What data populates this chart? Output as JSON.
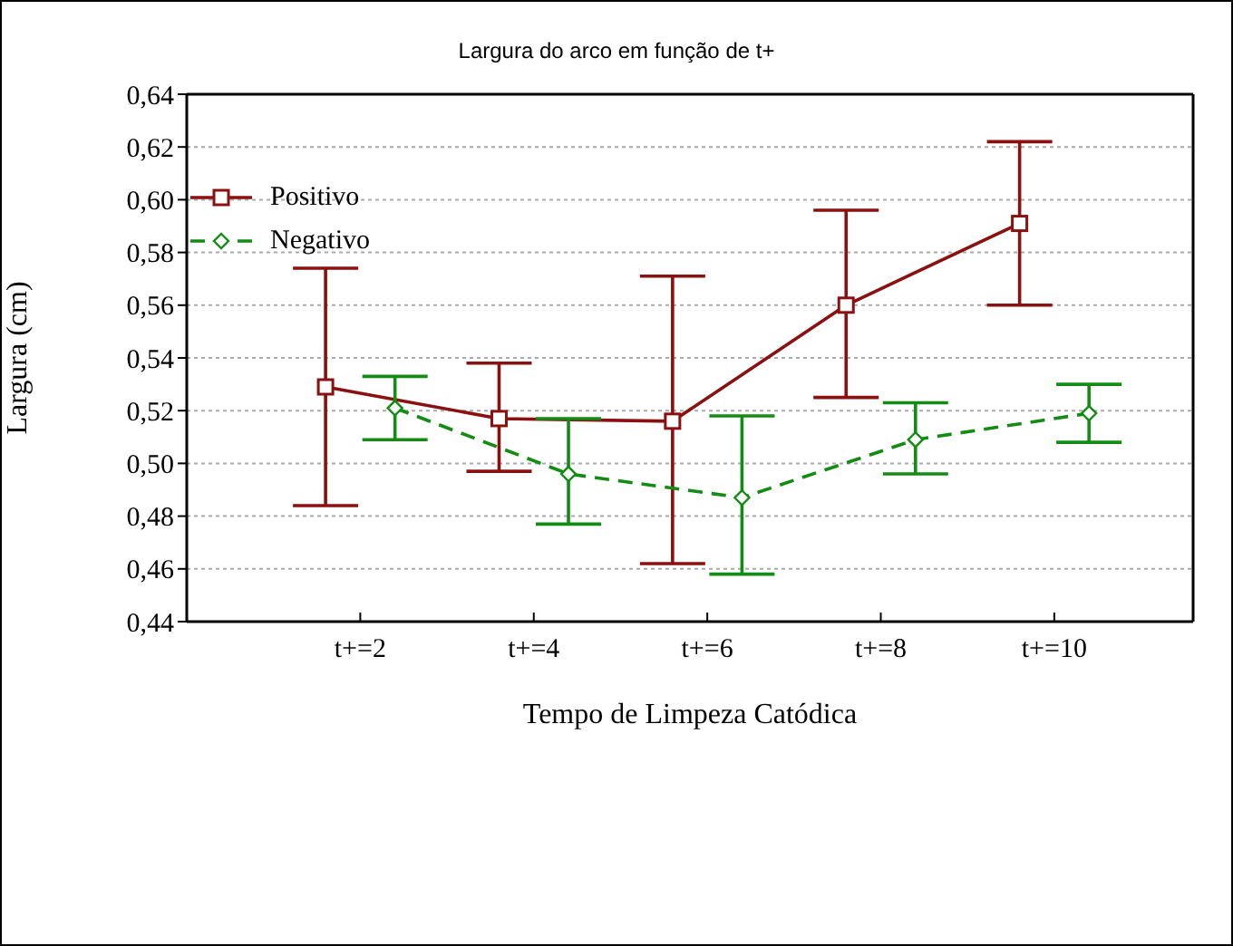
{
  "chart_data": {
    "type": "line",
    "title": "Largura do arco em função de t+",
    "xlabel": "Tempo de Limpeza Catódica",
    "ylabel": "Largura (cm)",
    "categories": [
      "t+=2",
      "t+=4",
      "t+=6",
      "t+=8",
      "t+=10"
    ],
    "ylim": [
      0.44,
      0.64
    ],
    "yticks": [
      {
        "value": 0.44,
        "label": "0,44"
      },
      {
        "value": 0.46,
        "label": "0,46"
      },
      {
        "value": 0.48,
        "label": "0,48"
      },
      {
        "value": 0.5,
        "label": "0,50"
      },
      {
        "value": 0.52,
        "label": "0,52"
      },
      {
        "value": 0.54,
        "label": "0,54"
      },
      {
        "value": 0.56,
        "label": "0,56"
      },
      {
        "value": 0.58,
        "label": "0,58"
      },
      {
        "value": 0.6,
        "label": "0,60"
      },
      {
        "value": 0.62,
        "label": "0,62"
      },
      {
        "value": 0.64,
        "label": "0,64"
      }
    ],
    "grid": "y",
    "legend": "top left",
    "series": [
      {
        "name": "Positivo",
        "color": "#8b1010",
        "marker": "square",
        "line_style": "solid",
        "values": [
          0.529,
          0.517,
          0.516,
          0.56,
          0.591
        ],
        "errors": [
          [
            0.484,
            0.574
          ],
          [
            0.497,
            0.538
          ],
          [
            0.462,
            0.571
          ],
          [
            0.525,
            0.596
          ],
          [
            0.56,
            0.622
          ]
        ]
      },
      {
        "name": "Negativo",
        "color": "#128c12",
        "marker": "diamond",
        "line_style": "dashed",
        "values": [
          0.521,
          0.496,
          0.487,
          0.509,
          0.519
        ],
        "errors": [
          [
            0.509,
            0.533
          ],
          [
            0.477,
            0.517
          ],
          [
            0.458,
            0.518
          ],
          [
            0.496,
            0.523
          ],
          [
            0.508,
            0.53
          ]
        ]
      }
    ]
  }
}
